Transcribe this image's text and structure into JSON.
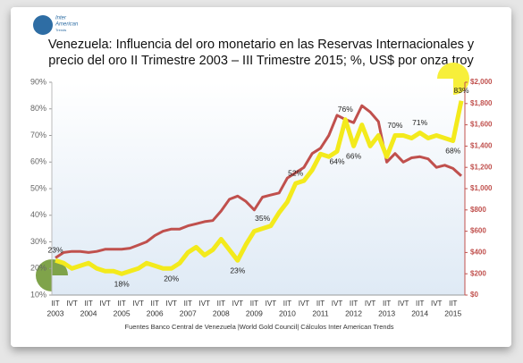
{
  "chart_data": {
    "type": "line",
    "title": [
      "Venezuela: Influencia del oro monetario en las Reservas Internacionales y",
      "precio del oro  II Trimestre 2003 – III Trimestre 2015; %, US$ por onza troy"
    ],
    "logo": [
      "Inter",
      "American",
      "Trends"
    ],
    "source": "Fuentes  Banco Central de Venezuela |World  Gold Council| Cálculos Inter American Trends",
    "categories": [
      "IIT",
      null,
      "IVT",
      null,
      "IIT",
      null,
      "IVT",
      null,
      "IIT",
      null,
      "IVT",
      null,
      "IIT",
      null,
      "IVT",
      null,
      "IIT",
      null,
      "IVT",
      null,
      "IIT",
      null,
      "IVT",
      null,
      "IIT",
      null,
      "IVT",
      null,
      "IIT",
      null,
      "IVT",
      null,
      "IIT",
      null,
      "IVT",
      null,
      "IIT",
      null,
      "IVT",
      null,
      "IIT",
      null,
      "IVT",
      null,
      "IIT",
      null,
      "IVT",
      null,
      "IIT",
      null
    ],
    "x_groups": [
      "2003",
      "2004",
      "2005",
      "2006",
      "2007",
      "2008",
      "2009",
      "2010",
      "2011",
      "2012",
      "2013",
      "2014",
      "2015"
    ],
    "ylim": [
      10,
      90
    ],
    "yticks": [
      {
        "value": 10,
        "label": "10%"
      },
      {
        "value": 20,
        "label": "20%"
      },
      {
        "value": 30,
        "label": "30%"
      },
      {
        "value": 40,
        "label": "40%"
      },
      {
        "value": 50,
        "label": "50%"
      },
      {
        "value": 60,
        "label": "60%"
      },
      {
        "value": 70,
        "label": "70%"
      },
      {
        "value": 80,
        "label": "80%"
      },
      {
        "value": 90,
        "label": "90%"
      }
    ],
    "y2lim": [
      0,
      2000
    ],
    "y2ticks": [
      {
        "value": 0,
        "label": "$0"
      },
      {
        "value": 200,
        "label": "$200"
      },
      {
        "value": 400,
        "label": "$400"
      },
      {
        "value": 600,
        "label": "$600"
      },
      {
        "value": 800,
        "label": "$800"
      },
      {
        "value": 1000,
        "label": "$1,000"
      },
      {
        "value": 1200,
        "label": "$1,200"
      },
      {
        "value": 1400,
        "label": "$1,400"
      },
      {
        "value": 1600,
        "label": "$1,600"
      },
      {
        "value": 1800,
        "label": "$1,800"
      },
      {
        "value": 2000,
        "label": "$2,000"
      }
    ],
    "series": [
      {
        "color": "#f3ea1c",
        "axis": "y",
        "values": [
          23,
          22,
          20,
          21,
          22,
          20,
          19,
          19,
          18,
          19,
          20,
          22,
          21,
          20,
          20,
          22,
          26,
          28,
          25,
          27,
          31,
          27,
          23,
          29,
          34,
          35,
          36,
          41,
          45,
          52,
          53,
          57,
          63,
          62,
          64,
          76,
          66,
          74,
          66,
          70,
          62,
          70,
          70,
          69,
          71,
          69,
          70,
          69,
          68,
          83
        ],
        "value_labels": [
          "23%",
          null,
          null,
          null,
          null,
          null,
          null,
          null,
          "18%",
          null,
          null,
          null,
          null,
          null,
          "20%",
          null,
          null,
          null,
          null,
          null,
          null,
          null,
          "23%",
          null,
          null,
          "35%",
          null,
          null,
          null,
          "52%",
          null,
          null,
          null,
          null,
          "64%",
          "76%",
          "66%",
          null,
          null,
          null,
          null,
          "70%",
          null,
          null,
          "71%",
          null,
          null,
          null,
          "68%",
          "83%"
        ]
      },
      {
        "color": "#c0504d",
        "axis": "y2",
        "values": [
          350,
          400,
          410,
          410,
          400,
          410,
          430,
          430,
          430,
          440,
          470,
          500,
          560,
          600,
          620,
          620,
          650,
          670,
          690,
          700,
          790,
          900,
          930,
          880,
          800,
          920,
          940,
          960,
          1100,
          1150,
          1200,
          1330,
          1380,
          1500,
          1690,
          1650,
          1620,
          1780,
          1720,
          1630,
          1250,
          1330,
          1250,
          1290,
          1300,
          1280,
          1200,
          1220,
          1190,
          1120
        ]
      }
    ]
  }
}
